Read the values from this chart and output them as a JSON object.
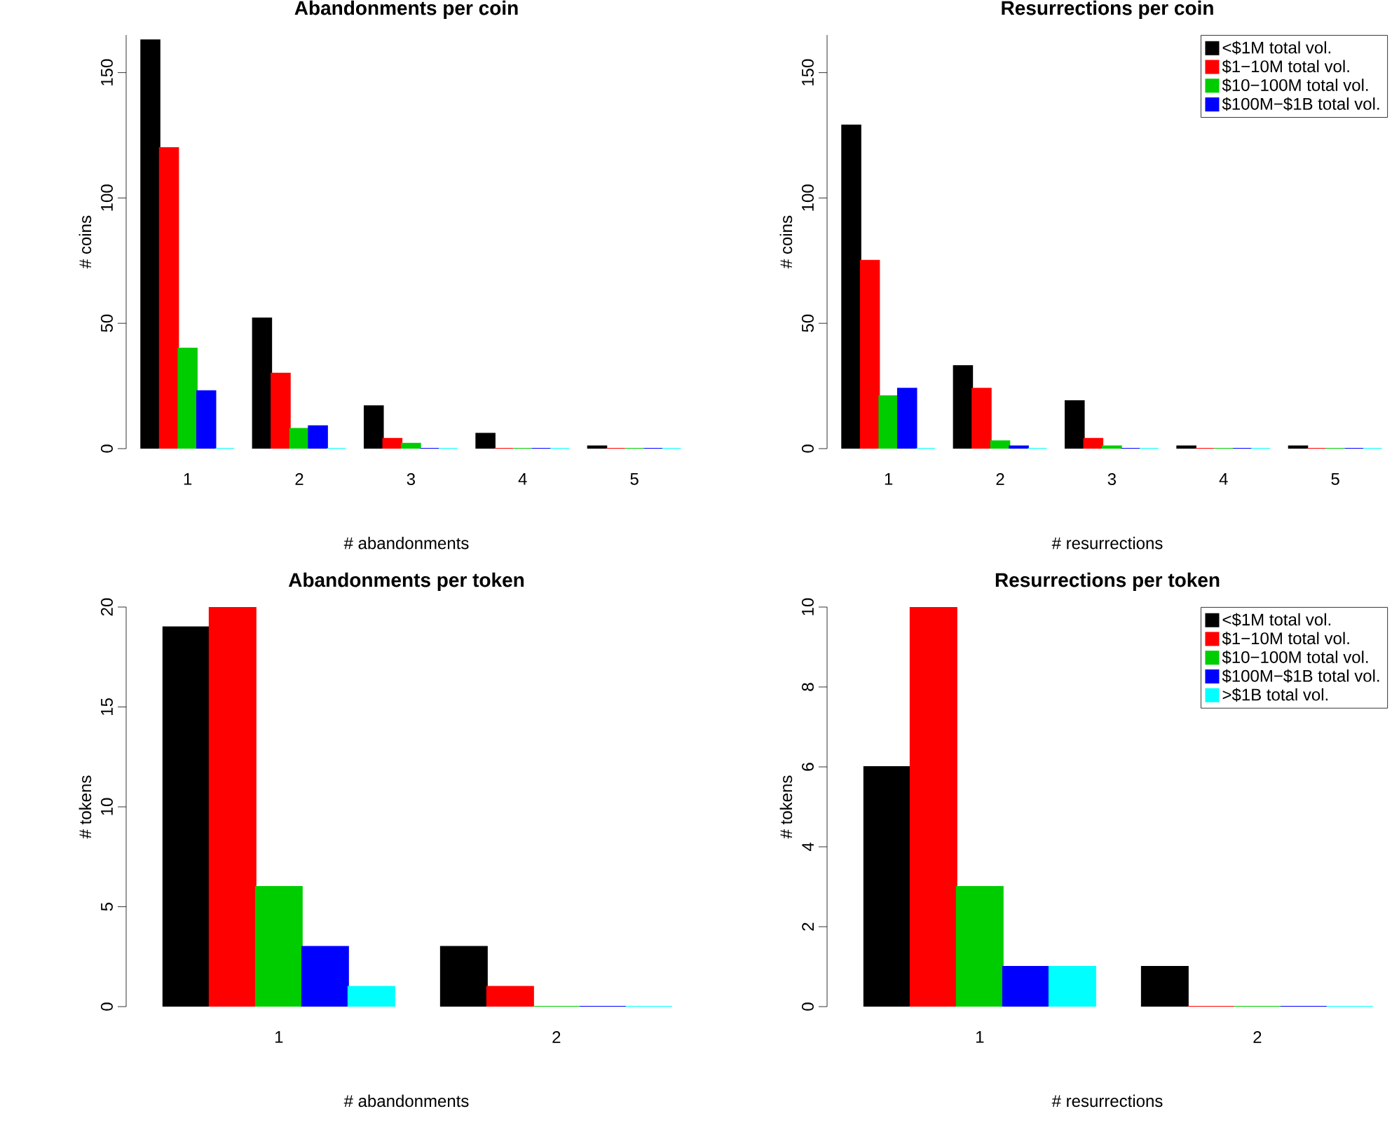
{
  "chart_data": [
    {
      "type": "bar",
      "title": "Abandonments per coin",
      "xlabel": "# abandonments",
      "ylabel": "# coins",
      "categories": [
        "1",
        "2",
        "3",
        "4",
        "5"
      ],
      "ylim": [
        0,
        165
      ],
      "yticks": [
        0,
        50,
        100,
        150
      ],
      "grid": false,
      "legend": false,
      "series": [
        {
          "color": "#000000",
          "values": [
            163,
            52,
            17,
            6,
            1
          ]
        },
        {
          "color": "#ff0000",
          "values": [
            120,
            30,
            4,
            0,
            0
          ]
        },
        {
          "color": "#00cd00",
          "values": [
            40,
            8,
            2,
            0,
            0
          ]
        },
        {
          "color": "#0000ff",
          "values": [
            23,
            9,
            0,
            0,
            0
          ]
        },
        {
          "color": "#00ffff",
          "values": [
            0,
            0,
            0,
            0,
            0
          ]
        }
      ]
    },
    {
      "type": "bar",
      "title": "Resurrections per coin",
      "xlabel": "# resurrections",
      "ylabel": "# coins",
      "categories": [
        "1",
        "2",
        "3",
        "4",
        "5"
      ],
      "ylim": [
        0,
        165
      ],
      "yticks": [
        0,
        50,
        100,
        150
      ],
      "grid": false,
      "legend": "top right",
      "series": [
        {
          "name": "<$1M total vol.",
          "color": "#000000",
          "values": [
            129,
            33,
            19,
            1,
            1
          ]
        },
        {
          "name": "$1−10M total vol.",
          "color": "#ff0000",
          "values": [
            75,
            24,
            4,
            0,
            0
          ]
        },
        {
          "name": "$10−100M total vol.",
          "color": "#00cd00",
          "values": [
            21,
            3,
            1,
            0,
            0
          ]
        },
        {
          "name": "$100M−$1B total vol.",
          "color": "#0000ff",
          "values": [
            24,
            1,
            0,
            0,
            0
          ]
        },
        {
          "color": "#00ffff",
          "values": [
            0,
            0,
            0,
            0,
            0
          ]
        }
      ]
    },
    {
      "type": "bar",
      "title": "Abandonments per token",
      "xlabel": "# abandonments",
      "ylabel": "# tokens",
      "categories": [
        "1",
        "2"
      ],
      "ylim": [
        0,
        20
      ],
      "yticks": [
        0,
        5,
        10,
        15,
        20
      ],
      "grid": false,
      "legend": false,
      "series": [
        {
          "color": "#000000",
          "values": [
            19,
            3
          ]
        },
        {
          "color": "#ff0000",
          "values": [
            20,
            1
          ]
        },
        {
          "color": "#00cd00",
          "values": [
            6,
            0
          ]
        },
        {
          "color": "#0000ff",
          "values": [
            3,
            0
          ]
        },
        {
          "color": "#00ffff",
          "values": [
            1,
            0
          ]
        }
      ]
    },
    {
      "type": "bar",
      "title": "Resurrections per token",
      "xlabel": "# resurrections",
      "ylabel": "# tokens",
      "categories": [
        "1",
        "2"
      ],
      "ylim": [
        0,
        10
      ],
      "yticks": [
        0,
        2,
        4,
        6,
        8,
        10
      ],
      "grid": false,
      "legend": "top right",
      "series": [
        {
          "name": "<$1M total vol.",
          "color": "#000000",
          "values": [
            6,
            1
          ]
        },
        {
          "name": "$1−10M total vol.",
          "color": "#ff0000",
          "values": [
            10,
            0
          ]
        },
        {
          "name": "$10−100M total vol.",
          "color": "#00cd00",
          "values": [
            3,
            0
          ]
        },
        {
          "name": "$100M−$1B total vol.",
          "color": "#0000ff",
          "values": [
            1,
            0
          ]
        },
        {
          "name": ">$1B total vol.",
          "color": "#00ffff",
          "values": [
            1,
            0
          ]
        }
      ]
    }
  ]
}
